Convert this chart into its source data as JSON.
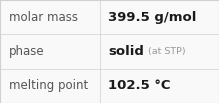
{
  "rows": [
    {
      "label": "molar mass",
      "value": "399.5 g/mol",
      "value_suffix": null
    },
    {
      "label": "phase",
      "value": "solid",
      "value_suffix": "(at STP)"
    },
    {
      "label": "melting point",
      "value": "102.5 °C",
      "value_suffix": null
    }
  ],
  "bg_color": "#f9f9f9",
  "border_color": "#d0d0d0",
  "label_color": "#555555",
  "value_color": "#1a1a1a",
  "suffix_color": "#999999",
  "label_fontsize": 8.5,
  "value_fontsize": 9.5,
  "suffix_fontsize": 6.8,
  "col_split": 0.455,
  "fig_width": 2.19,
  "fig_height": 1.03,
  "dpi": 100
}
